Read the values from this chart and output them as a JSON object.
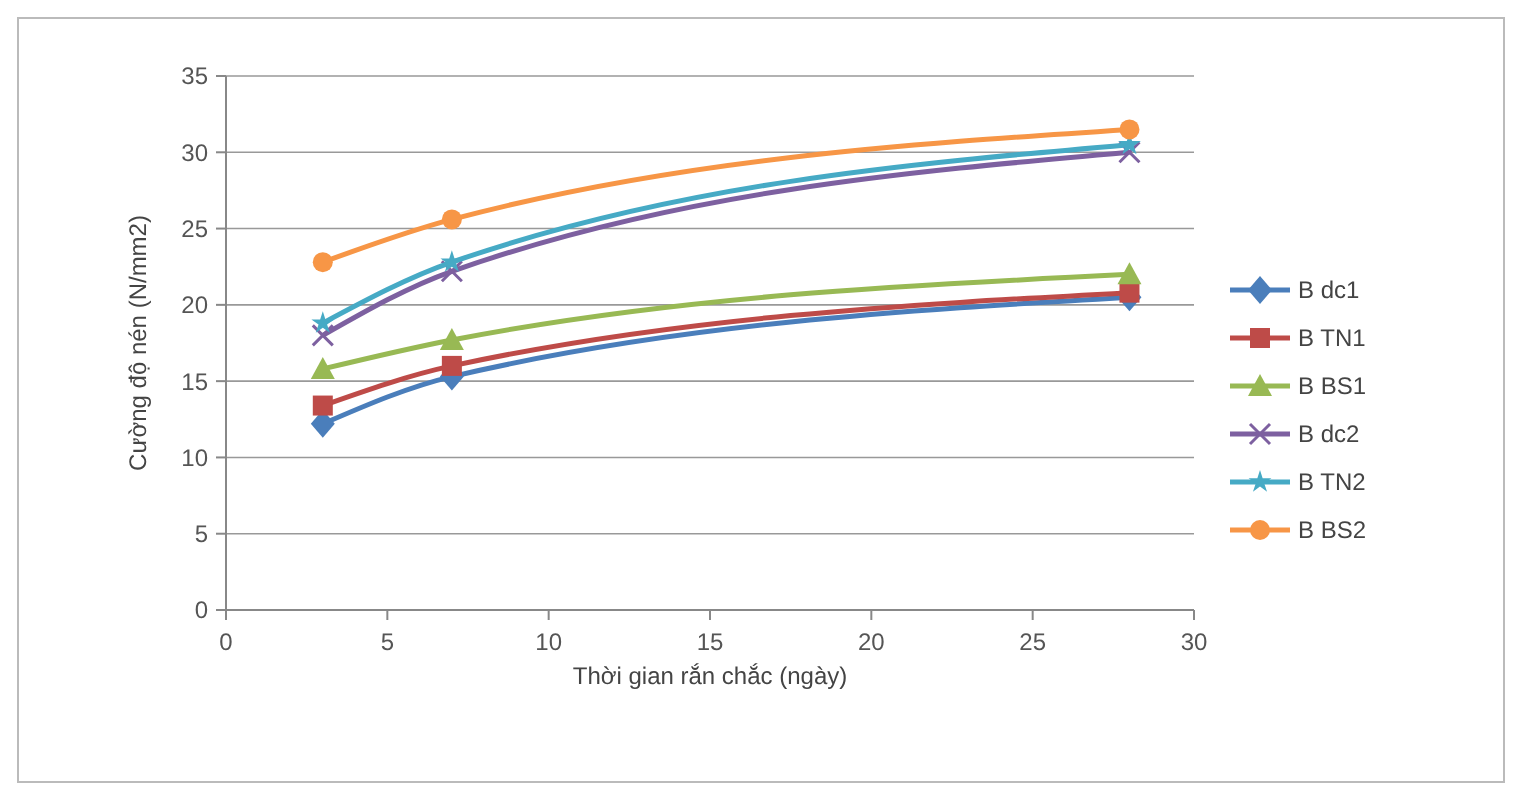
{
  "chart_data": {
    "type": "line",
    "xlabel": "Thời gian rắn chắc (ngày)",
    "ylabel": "Cường độ nén (N/mm2)",
    "x": [
      3,
      7,
      28
    ],
    "xlim": [
      0,
      30
    ],
    "xticks": [
      0,
      5,
      10,
      15,
      20,
      25,
      30
    ],
    "ylim": [
      0,
      35
    ],
    "yticks": [
      0,
      5,
      10,
      15,
      20,
      25,
      30,
      35
    ],
    "grid": "y",
    "legend": "right",
    "series": [
      {
        "name": "B dc1",
        "color": "#4a7ebb",
        "marker": "diamond",
        "values": [
          12.2,
          15.3,
          20.5
        ]
      },
      {
        "name": "B TN1",
        "color": "#be4b48",
        "marker": "square",
        "values": [
          13.4,
          16,
          20.8
        ]
      },
      {
        "name": "B BS1",
        "color": "#98b954",
        "marker": "triangle",
        "values": [
          15.8,
          17.7,
          22
        ]
      },
      {
        "name": "B dc2",
        "color": "#7d60a0",
        "marker": "cross",
        "values": [
          18,
          22.2,
          30
        ]
      },
      {
        "name": "B TN2",
        "color": "#46aac5",
        "marker": "star",
        "values": [
          18.8,
          22.8,
          30.5
        ]
      },
      {
        "name": "B BS2",
        "color": "#f79646",
        "marker": "circle",
        "values": [
          22.8,
          25.6,
          31.5
        ]
      }
    ]
  }
}
